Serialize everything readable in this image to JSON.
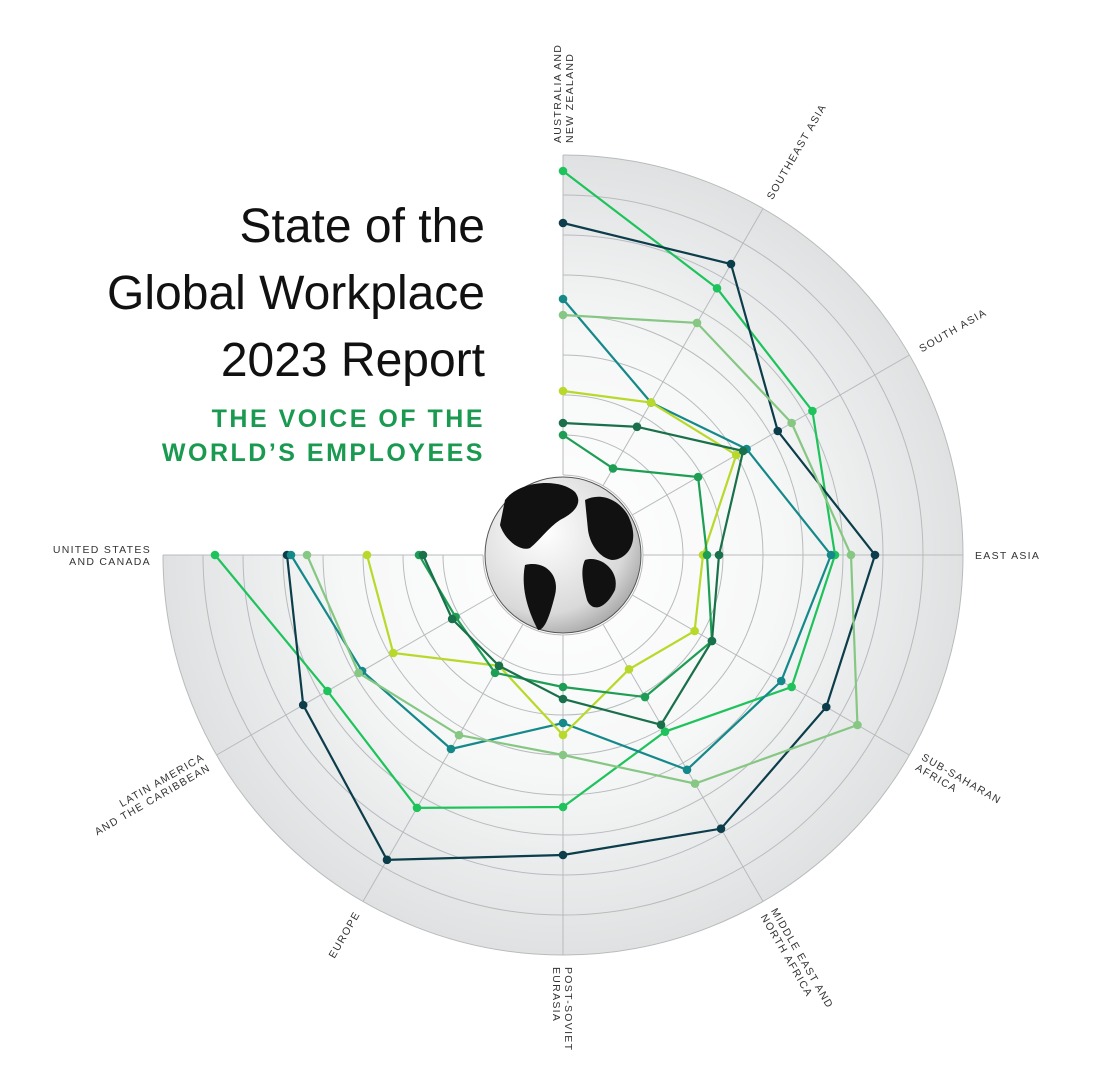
{
  "chart_data": {
    "type": "radar",
    "title": [
      "State of the",
      "Global Workplace",
      "2023 Report"
    ],
    "subtitle": [
      "THE VOICE OF THE",
      "WORLD’S EMPLOYEES"
    ],
    "categories": [
      [
        "AUSTRALIA AND",
        "NEW ZEALAND"
      ],
      [
        "SOUTHEAST ASIA"
      ],
      [
        "SOUTH ASIA"
      ],
      [
        "EAST ASIA"
      ],
      [
        "SUB-SAHARAN",
        "AFRICA"
      ],
      [
        "MIDDLE EAST AND",
        "NORTH AFRICA"
      ],
      [
        "POST-SOVIET",
        "EURASIA"
      ],
      [
        "EUROPE"
      ],
      [
        "LATIN AMERICA",
        "AND THE CARIBBEAN"
      ],
      [
        "UNITED STATES",
        "AND CANADA"
      ]
    ],
    "ylim": [
      0,
      100
    ],
    "yticks": [
      20,
      30,
      40,
      50,
      60,
      70,
      80,
      90,
      100
    ],
    "series": [
      {
        "color": "#1fc35c",
        "values": [
          96,
          77,
          72,
          68,
          66,
          51,
          63,
          73,
          68,
          87
        ]
      },
      {
        "color": "#0c3d4b",
        "values": [
          83,
          84,
          62,
          78,
          76,
          79,
          75,
          88,
          75,
          69
        ]
      },
      {
        "color": "#15898a",
        "values": [
          64,
          44,
          53,
          67,
          63,
          62,
          42,
          56,
          58,
          68
        ]
      },
      {
        "color": "#86c783",
        "values": [
          60,
          67,
          66,
          72,
          85,
          66,
          50,
          52,
          59,
          64
        ]
      },
      {
        "color": "#b8d92a",
        "values": [
          41,
          44,
          50,
          35,
          38,
          33,
          45,
          32,
          49,
          49
        ]
      },
      {
        "color": "#1e9e54",
        "values": [
          30,
          25,
          39,
          36,
          43,
          41,
          33,
          34,
          31,
          36
        ]
      },
      {
        "color": "#19704a",
        "values": [
          33,
          37,
          52,
          39,
          43,
          49,
          36,
          32,
          32,
          35
        ]
      }
    ]
  }
}
